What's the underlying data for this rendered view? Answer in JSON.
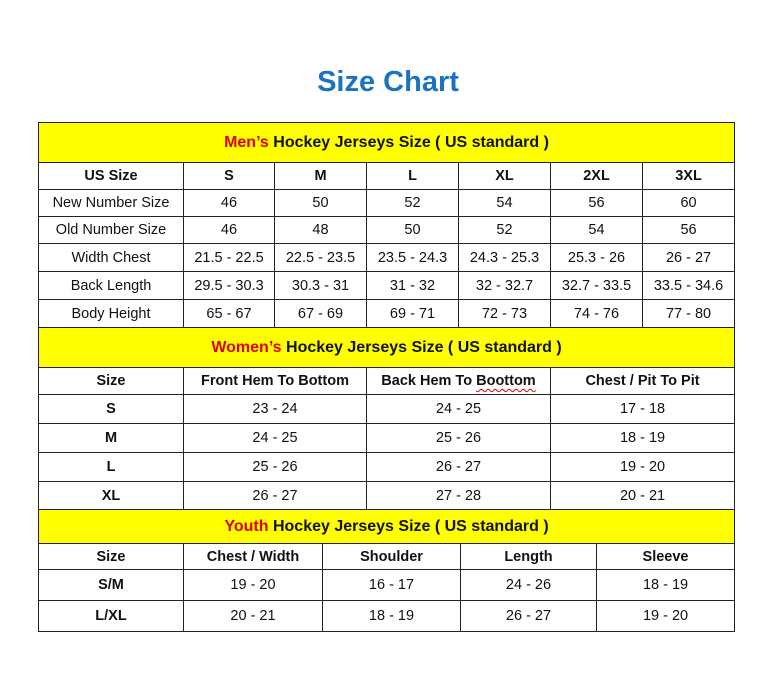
{
  "title": "Size Chart",
  "colors": {
    "title": "#1a73c1",
    "section_bg": "#ffff00",
    "highlight": "#e00000"
  },
  "men": {
    "heading_highlight": "Men’s",
    "heading_rest": " Hockey Jerseys Size ( US standard )",
    "headers": [
      "US Size",
      "S",
      "M",
      "L",
      "XL",
      "2XL",
      "3XL"
    ],
    "rows": [
      [
        "New Number Size",
        "46",
        "50",
        "52",
        "54",
        "56",
        "60"
      ],
      [
        "Old Number Size",
        "46",
        "48",
        "50",
        "52",
        "54",
        "56"
      ],
      [
        "Width Chest",
        "21.5 - 22.5",
        "22.5 - 23.5",
        "23.5 - 24.3",
        "24.3 - 25.3",
        "25.3 - 26",
        "26 - 27"
      ],
      [
        "Back Length",
        "29.5 - 30.3",
        "30.3 - 31",
        "31 - 32",
        "32 - 32.7",
        "32.7 - 33.5",
        "33.5 - 34.6"
      ],
      [
        "Body Height",
        "65 - 67",
        "67 - 69",
        "69 - 71",
        "72 - 73",
        "74 - 76",
        "77 - 80"
      ]
    ]
  },
  "women": {
    "heading_highlight": "Women’s",
    "heading_rest": " Hockey Jerseys Size ( US standard )",
    "headers": [
      "Size",
      "Front Hem To Bottom",
      "Back Hem To Boottom",
      "Chest / Pit To Pit"
    ],
    "rows": [
      [
        "S",
        "23 - 24",
        "24 - 25",
        "17 - 18"
      ],
      [
        "M",
        "24 - 25",
        "25 - 26",
        "18 - 19"
      ],
      [
        "L",
        "25 - 26",
        "26 - 27",
        "19 - 20"
      ],
      [
        "XL",
        "26 - 27",
        "27 - 28",
        "20 - 21"
      ]
    ]
  },
  "youth": {
    "heading_highlight": "Youth",
    "heading_rest": " Hockey Jerseys Size ( US standard )",
    "headers": [
      "Size",
      "Chest / Width",
      "Shoulder",
      "Length",
      "Sleeve"
    ],
    "rows": [
      [
        "S/M",
        "19 - 20",
        "16 - 17",
        "24 - 26",
        "18 - 19"
      ],
      [
        "L/XL",
        "20 - 21",
        "18 - 19",
        "26 - 27",
        "19 - 20"
      ]
    ]
  }
}
